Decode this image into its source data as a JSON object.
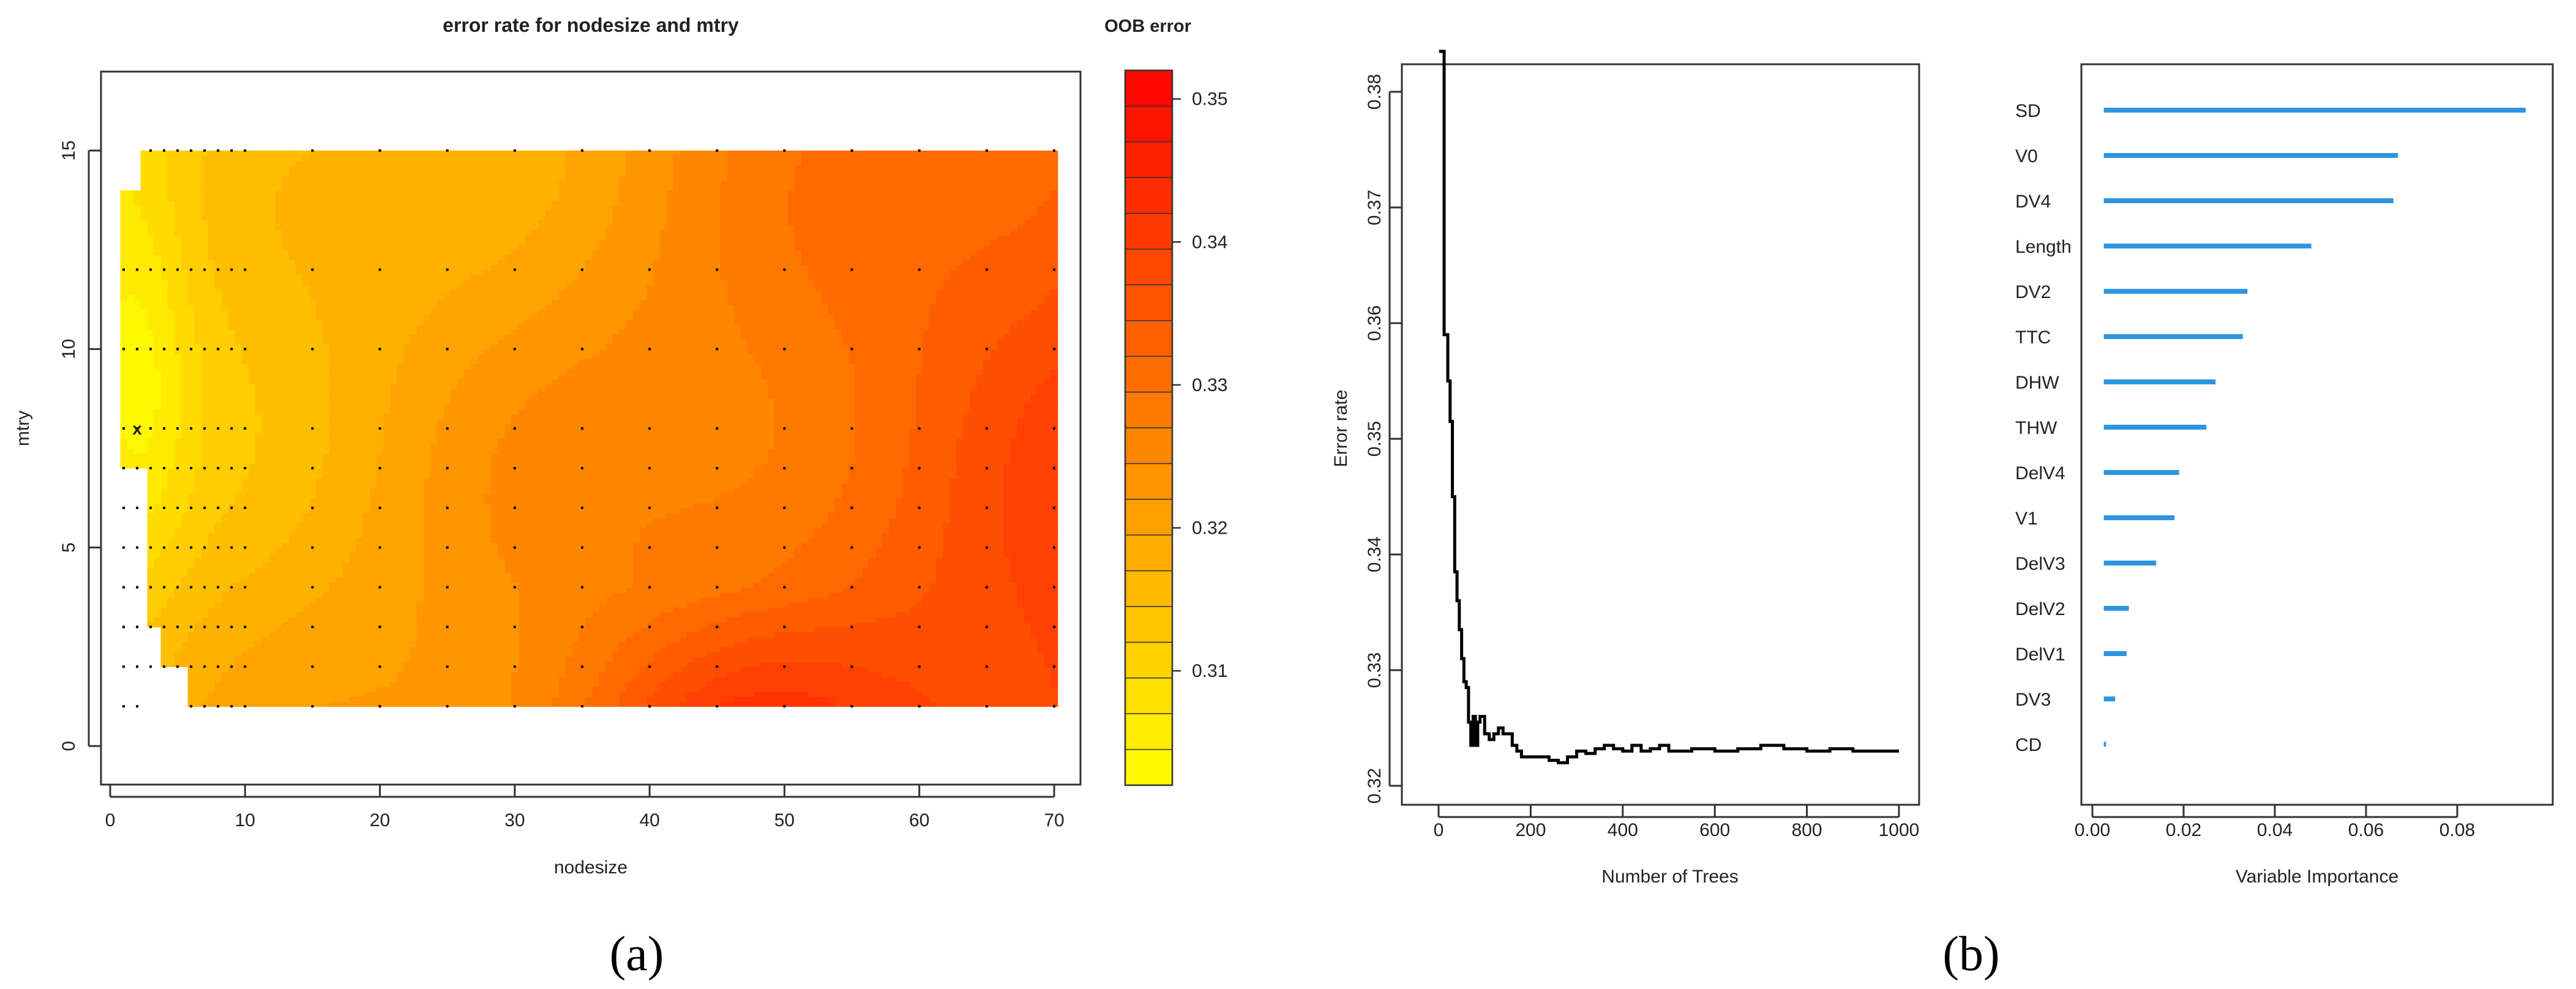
{
  "chart_data": [
    {
      "type": "heatmap",
      "title": "error rate for nodesize and mtry",
      "xlabel": "nodesize",
      "ylabel": "mtry",
      "legend_title": "OOB error",
      "xlim": [
        0,
        70
      ],
      "ylim": [
        0,
        15
      ],
      "xticks": [
        "0",
        "10",
        "20",
        "30",
        "40",
        "50",
        "60",
        "70"
      ],
      "yticks": [
        "0",
        "5",
        "10",
        "15"
      ],
      "colorbar_ticks": [
        "0.31",
        "0.32",
        "0.33",
        "0.34",
        "0.35"
      ],
      "colorbar_range": [
        0.302,
        0.352
      ],
      "colors": {
        "low": "#ffff00",
        "high": "#ff0000"
      },
      "grid_nodesize": [
        1,
        2,
        3,
        4,
        5,
        6,
        7,
        8,
        9,
        10,
        15,
        20,
        25,
        30,
        35,
        40,
        45,
        50,
        55,
        60,
        65,
        70
      ],
      "grid_mtry": [
        1,
        2,
        3,
        4,
        5,
        6,
        7,
        8,
        10,
        12,
        15
      ],
      "optimum": {
        "marker": "x",
        "nodesize": 2,
        "mtry": 8
      }
    },
    {
      "type": "line",
      "xlabel": "Number of Trees",
      "ylabel": "Error rate",
      "xlim": [
        0,
        1000
      ],
      "ylim": [
        0.32,
        0.384
      ],
      "xticks": [
        "0",
        "200",
        "400",
        "600",
        "800",
        "1000"
      ],
      "yticks": [
        "0.32",
        "0.33",
        "0.34",
        "0.35",
        "0.36",
        "0.37",
        "0.38"
      ],
      "series": [
        {
          "x": [
            1,
            10,
            12,
            20,
            25,
            30,
            35,
            40,
            45,
            50,
            55,
            60,
            65,
            70,
            75,
            80,
            85,
            90,
            95,
            100,
            110,
            120,
            130,
            140,
            150,
            160,
            170,
            180,
            190,
            200,
            220,
            240,
            260,
            280,
            300,
            320,
            340,
            360,
            380,
            400,
            420,
            440,
            460,
            480,
            500,
            550,
            600,
            650,
            700,
            750,
            800,
            850,
            900,
            950,
            1000
          ],
          "y": [
            0.3835,
            0.3835,
            0.359,
            0.355,
            0.3515,
            0.345,
            0.3385,
            0.336,
            0.3335,
            0.331,
            0.329,
            0.3285,
            0.3255,
            0.3235,
            0.326,
            0.3235,
            0.3255,
            0.326,
            0.326,
            0.3245,
            0.324,
            0.3245,
            0.325,
            0.3245,
            0.3245,
            0.3235,
            0.323,
            0.3225,
            0.3225,
            0.3225,
            0.3225,
            0.3222,
            0.322,
            0.3225,
            0.323,
            0.3228,
            0.3232,
            0.3235,
            0.3232,
            0.323,
            0.3235,
            0.323,
            0.3232,
            0.3235,
            0.323,
            0.3232,
            0.323,
            0.3232,
            0.3235,
            0.3232,
            0.323,
            0.3232,
            0.323,
            0.323,
            0.323
          ]
        }
      ]
    },
    {
      "type": "bar",
      "orientation": "horizontal",
      "xlabel": "Variable Importance",
      "xlim": [
        0,
        0.096
      ],
      "xticks": [
        "0.00",
        "0.02",
        "0.04",
        "0.06",
        "0.08"
      ],
      "categories": [
        "SD",
        "V0",
        "DV4",
        "Length",
        "DV2",
        "TTC",
        "DHW",
        "THW",
        "DelV4",
        "V1",
        "DelV3",
        "DelV2",
        "DelV1",
        "DV3",
        "CD"
      ],
      "values": [
        0.095,
        0.067,
        0.066,
        0.048,
        0.034,
        0.033,
        0.027,
        0.025,
        0.019,
        0.018,
        0.014,
        0.008,
        0.0075,
        0.005,
        0.003
      ],
      "bar_start": 0.0025,
      "color": "#2e95e0"
    }
  ],
  "panel_labels": {
    "a": "(a)",
    "b": "(b)"
  }
}
